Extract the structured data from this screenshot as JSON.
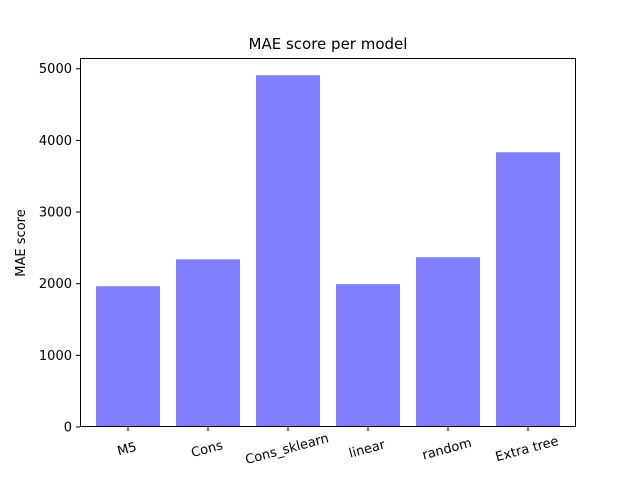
{
  "chart_data": {
    "type": "bar",
    "title": "MAE score per model",
    "xlabel": "",
    "ylabel": "MAE score",
    "categories": [
      "M5",
      "Cons",
      "Cons_sklearn",
      "linear",
      "random",
      "Extra tree"
    ],
    "values": [
      1965,
      2340,
      4910,
      1995,
      2370,
      3835
    ],
    "ylim": [
      0,
      5150
    ],
    "yticks": [
      0,
      1000,
      2000,
      3000,
      4000,
      5000
    ],
    "bar_color": "#8080ff",
    "grid": false,
    "legend": "none"
  }
}
